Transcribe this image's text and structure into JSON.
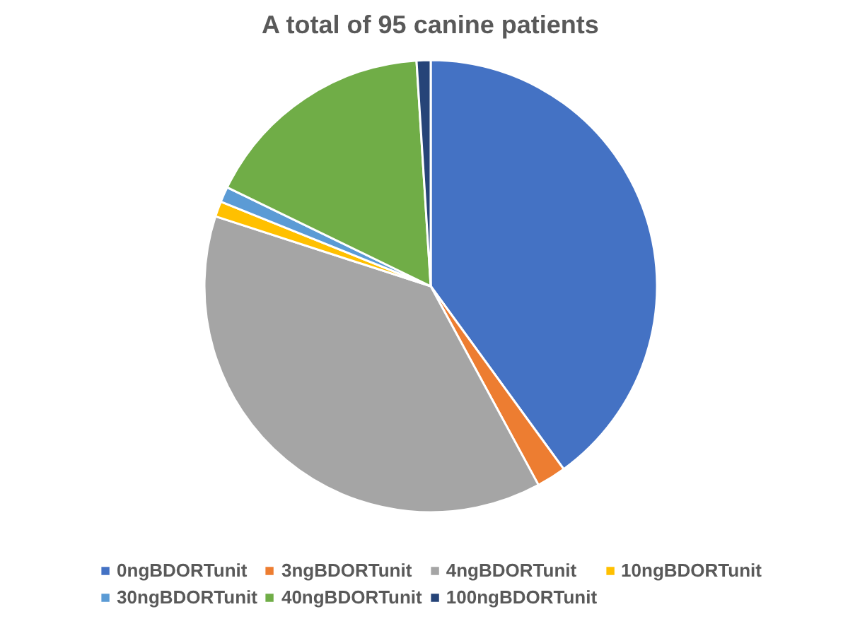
{
  "chart_data": {
    "type": "pie",
    "title": "A total of 95 canine patients",
    "categories": [
      "0ngBDORTunit",
      "3ngBDORTunit",
      "4ngBDORTunit",
      "10ngBDORTunit",
      "30ngBDORTunit",
      "40ngBDORTunit",
      "100ngBDORTunit"
    ],
    "values": [
      40.0,
      2.1,
      37.9,
      1.1,
      1.1,
      16.8,
      1.0
    ],
    "colors": [
      "#4472c4",
      "#ed7d31",
      "#a5a5a5",
      "#ffc000",
      "#5b9bd5",
      "#70ad47",
      "#264478"
    ],
    "legend": "bottom"
  }
}
